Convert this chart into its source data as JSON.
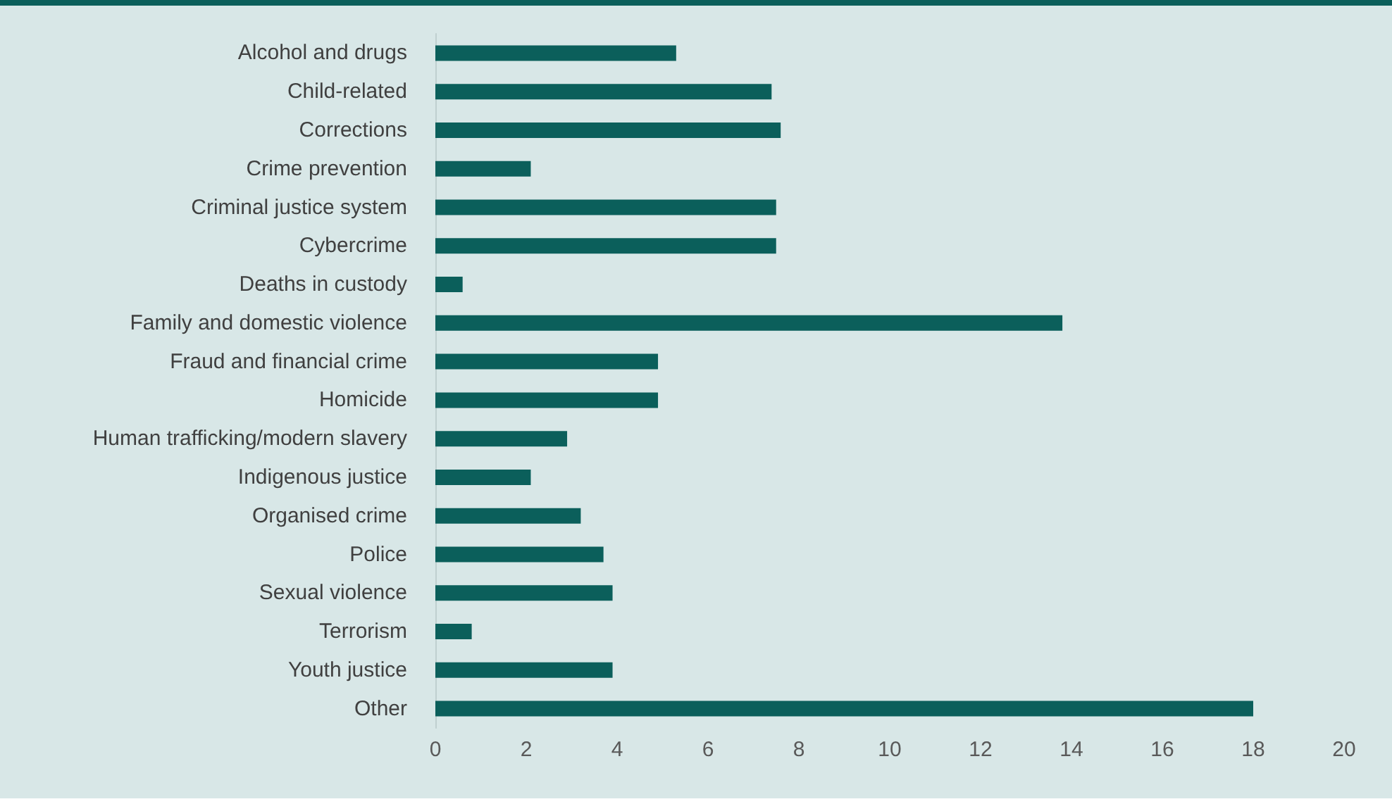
{
  "chart_data": {
    "type": "bar",
    "orientation": "horizontal",
    "categories": [
      "Alcohol and drugs",
      "Child-related",
      "Corrections",
      "Crime prevention",
      "Criminal justice system",
      "Cybercrime",
      "Deaths in custody",
      "Family and domestic violence",
      "Fraud and financial crime",
      "Homicide",
      "Human trafficking/modern slavery",
      "Indigenous justice",
      "Organised crime",
      "Police",
      "Sexual violence",
      "Terrorism",
      "Youth justice",
      "Other"
    ],
    "values": [
      5.3,
      7.4,
      7.6,
      2.1,
      7.5,
      7.5,
      0.6,
      13.8,
      4.9,
      4.9,
      2.9,
      2.1,
      3.2,
      3.7,
      3.9,
      0.8,
      3.9,
      18.0
    ],
    "color": "#0b5f5b",
    "xlim": [
      0,
      20
    ],
    "xticks": [
      0,
      2,
      4,
      6,
      8,
      10,
      12,
      14,
      16,
      18,
      20
    ],
    "grid": false
  }
}
